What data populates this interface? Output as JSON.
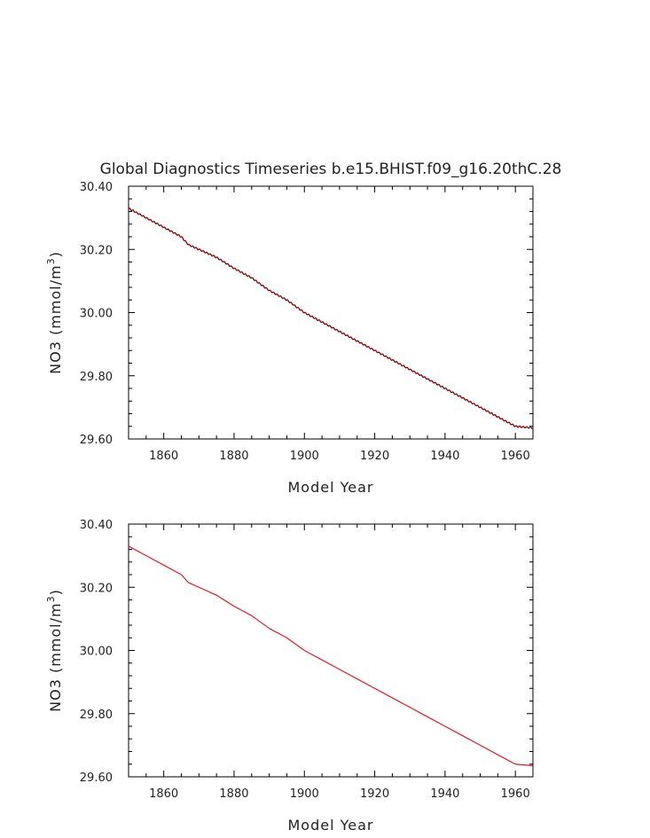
{
  "figure": {
    "title": "Global Diagnostics Timeseries b.e15.BHIST.f09_g16.20thC.28"
  },
  "chart_data": [
    {
      "type": "line",
      "title": "Global Diagnostics Timeseries b.e15.BHIST.f09_g16.20thC.28",
      "xlabel": "Model Year",
      "ylabel": "NO3 (mmol/m³)",
      "ylabel_main": "NO3 (mmol/m",
      "ylabel_sup": "3",
      "ylabel_tail": ")",
      "xlim": [
        1850,
        1965
      ],
      "ylim": [
        29.6,
        30.4
      ],
      "xticks": [
        1860,
        1880,
        1900,
        1920,
        1940,
        1960
      ],
      "xtick_labels": [
        "1860",
        "1880",
        "1900",
        "1920",
        "1940",
        "1960"
      ],
      "yticks": [
        29.6,
        29.8,
        30.0,
        30.2,
        30.4
      ],
      "ytick_labels": [
        "29.60",
        "29.80",
        "30.00",
        "30.20",
        "30.40"
      ],
      "grid": false,
      "series": [
        {
          "color": "#8b0000",
          "style": "monthly (annual cycle wiggle)",
          "x": [
            1850,
            1855,
            1860,
            1865,
            1867,
            1870,
            1875,
            1880,
            1885,
            1890,
            1895,
            1900,
            1905,
            1910,
            1915,
            1920,
            1925,
            1930,
            1935,
            1940,
            1945,
            1950,
            1955,
            1960,
            1965
          ],
          "y": [
            30.33,
            30.3,
            30.27,
            30.24,
            30.215,
            30.2,
            30.175,
            30.14,
            30.11,
            30.07,
            30.04,
            30.0,
            29.97,
            29.94,
            29.91,
            29.88,
            29.85,
            29.82,
            29.79,
            29.76,
            29.73,
            29.7,
            29.67,
            29.64,
            29.635
          ]
        }
      ]
    },
    {
      "type": "line",
      "title": "",
      "xlabel": "Model Year",
      "ylabel": "NO3 (mmol/m³)",
      "ylabel_main": "NO3 (mmol/m",
      "ylabel_sup": "3",
      "ylabel_tail": ")",
      "xlim": [
        1850,
        1965
      ],
      "ylim": [
        29.6,
        30.4
      ],
      "xticks": [
        1860,
        1880,
        1900,
        1920,
        1940,
        1960
      ],
      "xtick_labels": [
        "1860",
        "1880",
        "1900",
        "1920",
        "1940",
        "1960"
      ],
      "yticks": [
        29.6,
        29.8,
        30.0,
        30.2,
        30.4
      ],
      "ytick_labels": [
        "29.60",
        "29.80",
        "30.00",
        "30.20",
        "30.40"
      ],
      "grid": false,
      "series": [
        {
          "color": "#e8191d",
          "style": "annual mean",
          "x": [
            1850,
            1855,
            1860,
            1865,
            1867,
            1870,
            1875,
            1880,
            1885,
            1890,
            1895,
            1900,
            1905,
            1910,
            1915,
            1920,
            1925,
            1930,
            1935,
            1940,
            1945,
            1950,
            1955,
            1960,
            1965
          ],
          "y": [
            30.33,
            30.3,
            30.27,
            30.24,
            30.215,
            30.2,
            30.175,
            30.14,
            30.11,
            30.07,
            30.04,
            30.0,
            29.97,
            29.94,
            29.91,
            29.88,
            29.85,
            29.82,
            29.79,
            29.76,
            29.73,
            29.7,
            29.67,
            29.64,
            29.635
          ]
        }
      ]
    }
  ]
}
